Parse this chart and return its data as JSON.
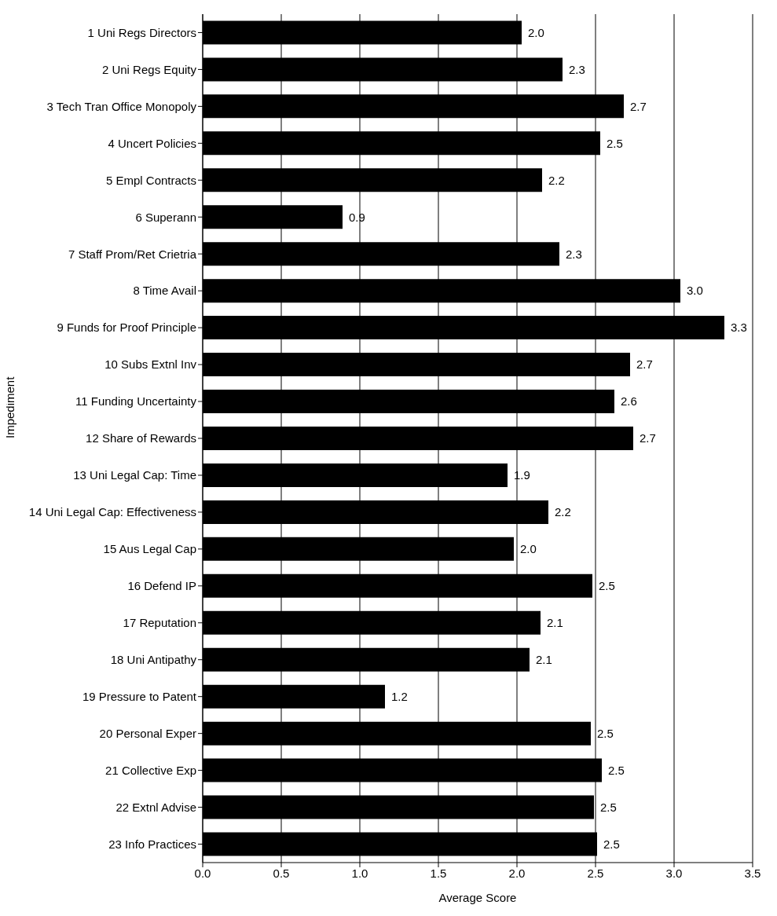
{
  "chart_data": {
    "type": "bar",
    "orientation": "horizontal",
    "xlabel": "Average Score",
    "ylabel": "Impediment",
    "categories": [
      "1 Uni Regs Directors",
      "2 Uni Regs Equity",
      "3 Tech Tran Office Monopoly",
      "4 Uncert Policies",
      "5 Empl Contracts",
      "6 Superann",
      "7 Staff Prom/Ret Crietria",
      "8 Time Avail",
      "9 Funds for Proof Principle",
      "10 Subs Extnl Inv",
      "11 Funding Uncertainty",
      "12 Share of Rewards",
      "13 Uni Legal Cap: Time",
      "14 Uni Legal Cap: Effectiveness",
      "15 Aus Legal Cap",
      "16 Defend IP",
      "17 Reputation",
      "18 Uni Antipathy",
      "19 Pressure to Patent",
      "20 Personal Exper",
      "21 Collective Exp",
      "22 Extnl Advise",
      "23 Info Practices"
    ],
    "values": [
      2.03,
      2.29,
      2.68,
      2.53,
      2.16,
      0.89,
      2.27,
      3.04,
      3.32,
      2.72,
      2.62,
      2.74,
      1.94,
      2.2,
      1.98,
      2.48,
      2.15,
      2.08,
      1.16,
      2.47,
      2.54,
      2.49,
      2.51
    ],
    "value_labels": [
      "2.0",
      "2.3",
      "2.7",
      "2.5",
      "2.2",
      "0.9",
      "2.3",
      "3.0",
      "3.3",
      "2.7",
      "2.6",
      "2.7",
      "1.9",
      "2.2",
      "2.0",
      "2.5",
      "2.1",
      "2.1",
      "1.2",
      "2.5",
      "2.5",
      "2.5",
      "2.5"
    ],
    "color": "#000000",
    "xlim": [
      0,
      3.5
    ],
    "xticks": [
      {
        "value": 0,
        "label": "0.0"
      },
      {
        "value": 0.5,
        "label": "0.5"
      },
      {
        "value": 1,
        "label": "1.0"
      },
      {
        "value": 1.5,
        "label": "1.5"
      },
      {
        "value": 2,
        "label": "2.0"
      },
      {
        "value": 2.5,
        "label": "2.5"
      },
      {
        "value": 3,
        "label": "3.0"
      },
      {
        "value": 3.5,
        "label": "3.5"
      }
    ],
    "grid": "x",
    "legend": false
  }
}
